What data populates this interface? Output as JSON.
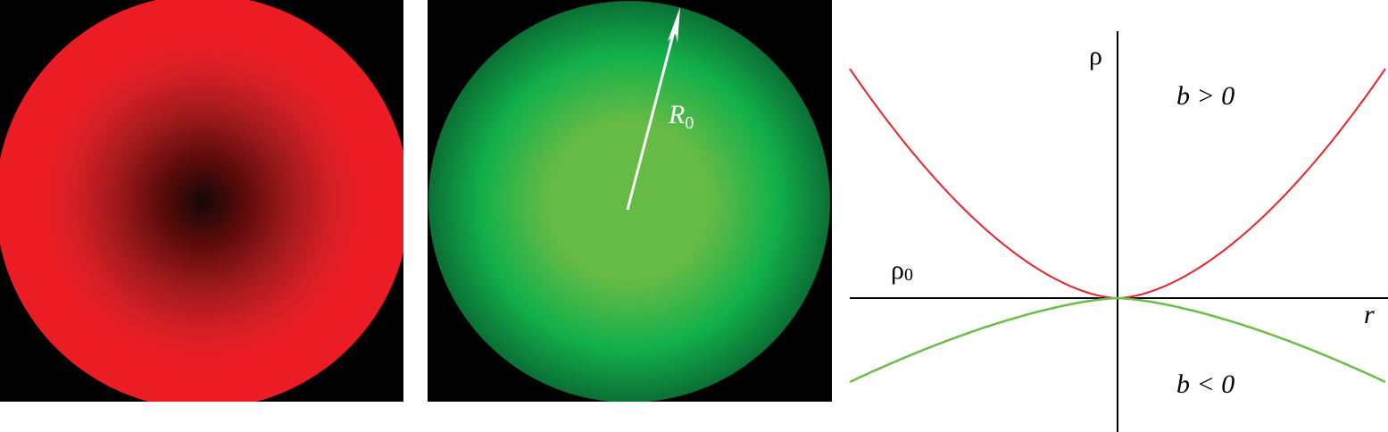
{
  "colors": {
    "red": "#ec1c24",
    "red_center": "#150808",
    "green_center": "#66bb46",
    "green_mid": "#12b04a",
    "green_dark": "#0a6b34",
    "positive_curve": "#ec2227",
    "negative_curve": "#6abd45",
    "background": "#000000"
  },
  "green_panel": {
    "radius_label": "R",
    "radius_subscript": "0"
  },
  "plot": {
    "y_axis_label": "ρ",
    "x_axis_label": "r",
    "baseline_label": "ρ",
    "baseline_subscript": "0",
    "positive_b_label": "b > 0",
    "negative_b_label": "b < 0"
  }
}
